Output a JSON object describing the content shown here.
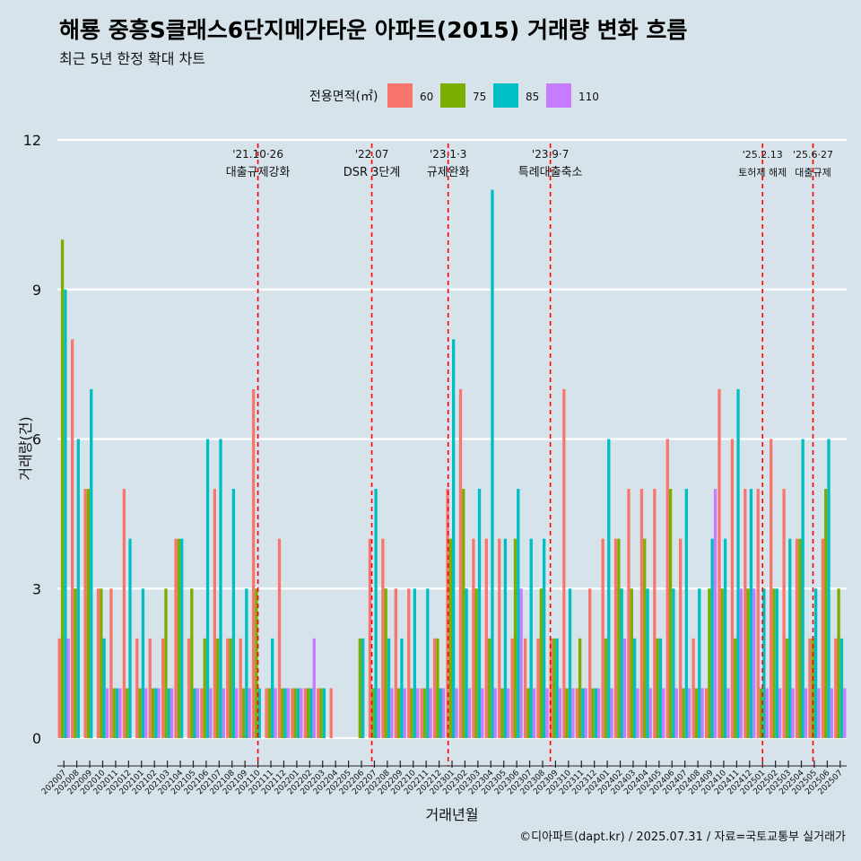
{
  "header": {
    "title": "해룡 중흥S클래스6단지메가타운 아파트(2015) 거래량 변화 흐름",
    "subtitle": "최근 5년 한정 확대 차트"
  },
  "footer": {
    "caption": "©디아파트(dapt.kr) / 2025.07.31 / 자료=국토교통부 실거래가"
  },
  "chart_data": {
    "type": "bar",
    "title": "해룡 중흥S클래스6단지메가타운 아파트(2015) 거래량 변화 흐름",
    "subtitle": "최근 5년 한정 확대 차트",
    "xlabel": "거래년월",
    "ylabel": "거래량(건)",
    "ylim": [
      0,
      12
    ],
    "yticks": [
      0,
      3,
      6,
      9,
      12
    ],
    "grid": true,
    "legend_title": "전용면적(㎡)",
    "legend_position": "top",
    "categories": [
      "202007",
      "202008",
      "202009",
      "202010",
      "202011",
      "202012",
      "202101",
      "202102",
      "202103",
      "202104",
      "202105",
      "202106",
      "202107",
      "202108",
      "202109",
      "202110",
      "202111",
      "202112",
      "202201",
      "202202",
      "202203",
      "202204",
      "202205",
      "202206",
      "202207",
      "202208",
      "202209",
      "202210",
      "202211",
      "202212",
      "202301",
      "202302",
      "202303",
      "202304",
      "202305",
      "202306",
      "202307",
      "202308",
      "202309",
      "202310",
      "202311",
      "202312",
      "202401",
      "202402",
      "202403",
      "202404",
      "202405",
      "202406",
      "202407",
      "202408",
      "202409",
      "202410",
      "202411",
      "202412",
      "202501",
      "202502",
      "202503",
      "202504",
      "202505",
      "202506",
      "202507"
    ],
    "series": [
      {
        "name": "60",
        "color": "#F8766D",
        "values": [
          2,
          8,
          5,
          3,
          3,
          5,
          2,
          2,
          2,
          4,
          2,
          1,
          5,
          2,
          2,
          7,
          1,
          4,
          1,
          1,
          1,
          1,
          0,
          0,
          4,
          4,
          3,
          3,
          1,
          2,
          5,
          7,
          4,
          4,
          4,
          2,
          2,
          2,
          2,
          7,
          1,
          3,
          4,
          4,
          5,
          5,
          5,
          6,
          4,
          2,
          1,
          7,
          6,
          5,
          5,
          6,
          5,
          4,
          2,
          4,
          2
        ],
        "colors_note": ""
      },
      {
        "name": "75",
        "color": "#7CAE00",
        "values": [
          10,
          3,
          5,
          3,
          1,
          1,
          1,
          1,
          3,
          4,
          3,
          2,
          2,
          2,
          1,
          3,
          1,
          1,
          1,
          1,
          1,
          0,
          0,
          2,
          1,
          3,
          1,
          1,
          1,
          2,
          4,
          5,
          3,
          2,
          1,
          4,
          1,
          3,
          2,
          1,
          2,
          1,
          2,
          4,
          3,
          4,
          2,
          5,
          1,
          1,
          3,
          3,
          2,
          3,
          1,
          3,
          2,
          4,
          2,
          5,
          3
        ],
        "colors_note": ""
      },
      {
        "name": "85",
        "color": "#00BFC4",
        "values": [
          9,
          6,
          7,
          2,
          1,
          4,
          3,
          1,
          1,
          4,
          1,
          6,
          6,
          5,
          3,
          1,
          2,
          1,
          1,
          1,
          1,
          0,
          0,
          2,
          5,
          2,
          2,
          3,
          3,
          1,
          8,
          3,
          5,
          11,
          4,
          5,
          4,
          4,
          2,
          3,
          1,
          1,
          6,
          3,
          2,
          3,
          2,
          3,
          5,
          3,
          4,
          4,
          7,
          5,
          3,
          3,
          4,
          6,
          3,
          6,
          2
        ],
        "colors_note": ""
      },
      {
        "name": "110",
        "color": "#C77CFF",
        "values": [
          2,
          0,
          0,
          1,
          1,
          0,
          1,
          1,
          1,
          0,
          1,
          1,
          1,
          1,
          1,
          0,
          1,
          1,
          1,
          2,
          0,
          0,
          0,
          0,
          1,
          1,
          1,
          1,
          1,
          1,
          1,
          1,
          1,
          1,
          1,
          3,
          1,
          1,
          1,
          1,
          1,
          1,
          1,
          2,
          1,
          1,
          1,
          1,
          1,
          1,
          5,
          1,
          3,
          3,
          1,
          1,
          1,
          1,
          1,
          1,
          1
        ],
        "colors_note": ""
      }
    ],
    "annotations": [
      {
        "after_category": "202110",
        "date": "'21.10·26",
        "label": "대출규제강화"
      },
      {
        "after_category": "202207",
        "date": "'22.07",
        "label": "DSR 3단계"
      },
      {
        "after_category": "202301",
        "date": "'23.1·3",
        "label": "규제완화"
      },
      {
        "after_category": "202309",
        "date": "'23.9·7",
        "label": "특례대출축소"
      },
      {
        "after_category": "202502",
        "date": "'25.2.13",
        "label": "토허제 해제"
      },
      {
        "after_category": "202506",
        "date": "'25.6·27",
        "label": "대출규제"
      }
    ],
    "annotation_positions": [
      15.5,
      24.3,
      30.2,
      38.1,
      54.5,
      58.4
    ],
    "line_color": "#FF0000"
  }
}
